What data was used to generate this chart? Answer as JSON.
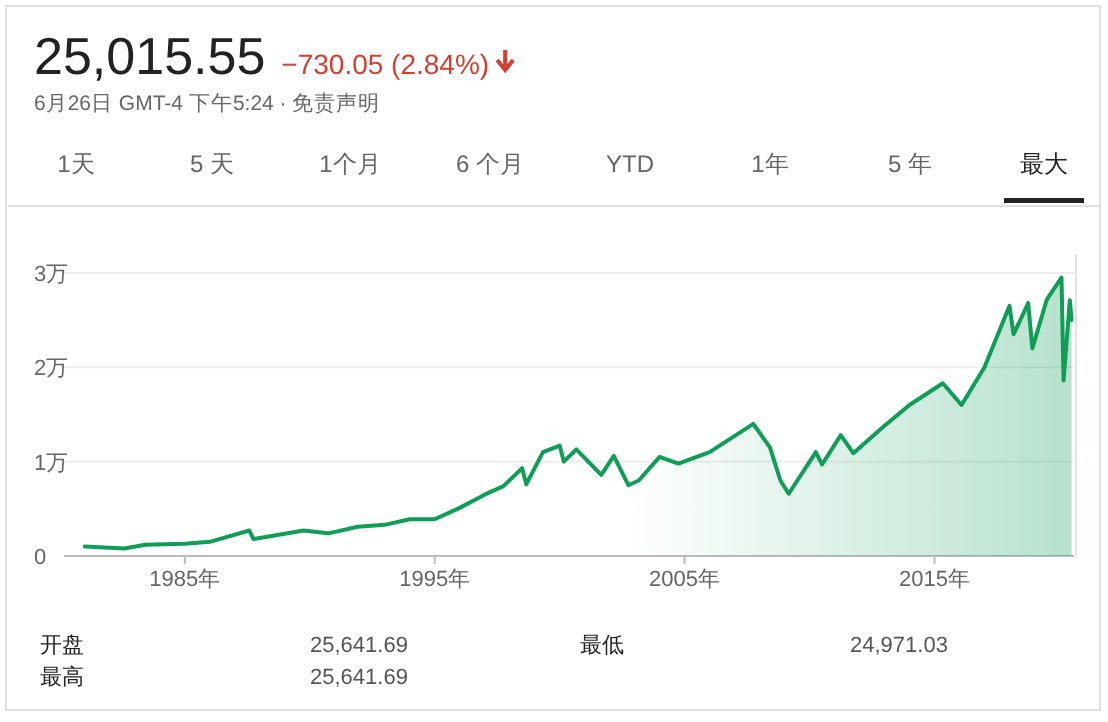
{
  "chart_data": {
    "type": "area",
    "title": "25,015.55",
    "subtitle": "−730.05 (2.84%)",
    "annotations": [
      "6月26日 GMT-4 下午5:24 · 免责声明",
      "1天",
      "5 天",
      "1个月",
      "6 个月",
      "YTD",
      "1年",
      "5 年",
      "最大",
      "开盘",
      "25,641.69",
      "最低",
      "24,971.03",
      "最高",
      "25,641.69"
    ],
    "x": [
      "1981-01",
      "1982-08",
      "1983-06",
      "1985-01",
      "1986-01",
      "1987-08",
      "1987-10",
      "1988-06",
      "1989-10",
      "1990-10",
      "1991-12",
      "1993-01",
      "1994-01",
      "1995-01",
      "1996-01",
      "1997-01",
      "1997-10",
      "1998-07",
      "1998-09",
      "1999-05",
      "2000-01",
      "2000-03",
      "2000-09",
      "2001-09",
      "2002-03",
      "2002-10",
      "2003-03",
      "2004-01",
      "2004-10",
      "2006-01",
      "2007-10",
      "2008-06",
      "2008-11",
      "2009-03",
      "2010-04",
      "2010-07",
      "2011-04",
      "2011-10",
      "2013-01",
      "2014-01",
      "2015-05",
      "2016-02",
      "2017-01",
      "2018-01",
      "2018-03",
      "2018-10",
      "2018-12",
      "2019-07",
      "2020-02",
      "2020-03",
      "2020-06",
      "2020-06-26"
    ],
    "series": [
      {
        "color": "#0f9d58",
        "values": [
          0.1,
          0.08,
          0.12,
          0.13,
          0.15,
          0.27,
          0.18,
          0.21,
          0.27,
          0.24,
          0.31,
          0.33,
          0.39,
          0.39,
          0.51,
          0.65,
          0.74,
          0.93,
          0.76,
          1.1,
          1.17,
          1.0,
          1.13,
          0.86,
          1.06,
          0.75,
          0.8,
          1.05,
          0.98,
          1.1,
          1.4,
          1.15,
          0.8,
          0.66,
          1.1,
          0.97,
          1.28,
          1.09,
          1.38,
          1.6,
          1.83,
          1.6,
          2.0,
          2.65,
          2.35,
          2.68,
          2.2,
          2.72,
          2.95,
          1.86,
          2.71,
          2.5
        ]
      }
    ],
    "xlim": [
      "1980-03",
      "2020-08"
    ],
    "xticks": [
      {
        "value": "1985",
        "label": "1985年"
      },
      {
        "value": "1995",
        "label": "1995年"
      },
      {
        "value": "2005",
        "label": "2005年"
      },
      {
        "value": "2015",
        "label": "2015年"
      }
    ],
    "ylim": [
      0,
      3.2
    ],
    "yticks": [
      0,
      {
        "value": 1,
        "label": "1万"
      },
      {
        "value": 2,
        "label": "2万"
      },
      {
        "value": 3,
        "label": "3万"
      }
    ],
    "grid": "y"
  }
}
